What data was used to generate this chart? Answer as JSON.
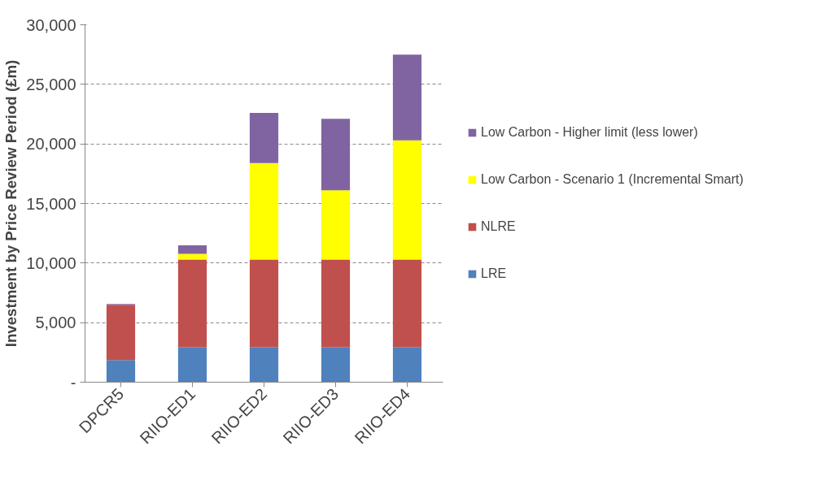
{
  "chart_data": {
    "type": "bar",
    "stacked": true,
    "ylabel": "Investment by Price Review Period (£m)",
    "categories": [
      "DPCR5",
      "RIIO-ED1",
      "RIIO-ED2",
      "RIIO-ED3",
      "RIIO-ED4"
    ],
    "series": [
      {
        "name": "LRE",
        "color": "#4f81bd",
        "values": [
          1850,
          2950,
          2950,
          2950,
          2950
        ]
      },
      {
        "name": "NLRE",
        "color": "#c0504d",
        "values": [
          4650,
          7350,
          7350,
          7350,
          7350
        ]
      },
      {
        "name": "Low Carbon - Scenario 1 (Incremental Smart)",
        "color": "#ffff00",
        "values": [
          0,
          470,
          8100,
          5800,
          10000
        ]
      },
      {
        "name": "Low Carbon - Higher limit (less lower)",
        "color": "#8064a2",
        "values": [
          70,
          720,
          4200,
          6000,
          7200
        ]
      }
    ],
    "ylim": [
      0,
      30000
    ],
    "yticks": [
      {
        "value": 0,
        "label": "-"
      },
      {
        "value": 5000,
        "label": "5,000"
      },
      {
        "value": 10000,
        "label": "10,000"
      },
      {
        "value": 15000,
        "label": "15,000"
      },
      {
        "value": 20000,
        "label": "20,000"
      },
      {
        "value": 25000,
        "label": "25,000"
      },
      {
        "value": 30000,
        "label": "30,000"
      }
    ],
    "grid": "y",
    "legend": "right"
  }
}
